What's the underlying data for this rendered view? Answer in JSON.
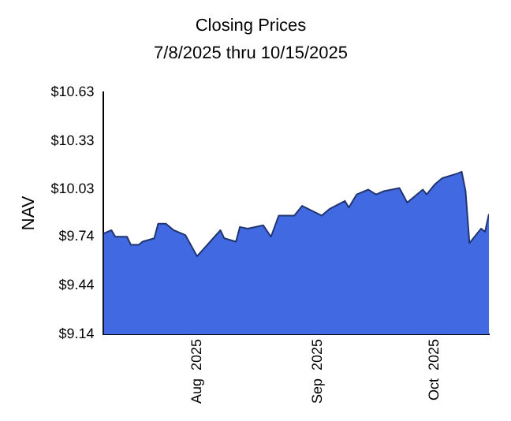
{
  "chart_data": {
    "type": "area",
    "title": "Closing Prices",
    "subtitle": "7/8/2025 thru 10/15/2025",
    "ylabel": "NAV",
    "x": [
      "2025-07-08",
      "2025-07-10",
      "2025-07-11",
      "2025-07-14",
      "2025-07-15",
      "2025-07-17",
      "2025-07-18",
      "2025-07-21",
      "2025-07-22",
      "2025-07-24",
      "2025-07-26",
      "2025-07-29",
      "2025-08-01",
      "2025-08-07",
      "2025-08-08",
      "2025-08-11",
      "2025-08-12",
      "2025-08-14",
      "2025-08-18",
      "2025-08-20",
      "2025-08-22",
      "2025-08-26",
      "2025-08-28",
      "2025-09-02",
      "2025-09-04",
      "2025-09-08",
      "2025-09-09",
      "2025-09-11",
      "2025-09-14",
      "2025-09-16",
      "2025-09-18",
      "2025-09-22",
      "2025-09-24",
      "2025-09-28",
      "2025-09-29",
      "2025-10-01",
      "2025-10-03",
      "2025-10-07",
      "2025-10-08",
      "2025-10-09",
      "2025-10-10",
      "2025-10-13",
      "2025-10-14",
      "2025-10-15"
    ],
    "series": [
      {
        "color": "#4169e1",
        "values": [
          9.76,
          9.78,
          9.74,
          9.74,
          9.69,
          9.69,
          9.71,
          9.73,
          9.82,
          9.82,
          9.78,
          9.75,
          9.62,
          9.78,
          9.73,
          9.71,
          9.8,
          9.79,
          9.81,
          9.74,
          9.87,
          9.87,
          9.93,
          9.87,
          9.91,
          9.96,
          9.92,
          10.0,
          10.03,
          10.0,
          10.02,
          10.04,
          9.95,
          10.03,
          10.0,
          10.06,
          10.1,
          10.13,
          10.14,
          10.02,
          9.7,
          9.79,
          9.77,
          9.88
        ]
      }
    ],
    "xlim": [
      "2025-07-08",
      "2025-10-15"
    ],
    "xticks": [
      {
        "value": "2025-08-01",
        "label": "Aug  2025"
      },
      {
        "value": "2025-09-01",
        "label": "Sep  2025"
      },
      {
        "value": "2025-10-01",
        "label": "Oct  2025"
      }
    ],
    "ylim": [
      9.14,
      10.63
    ],
    "yticks": [
      {
        "value": 9.14,
        "label": "$9.14"
      },
      {
        "value": 9.44,
        "label": "$9.44"
      },
      {
        "value": 9.74,
        "label": "$9.74"
      },
      {
        "value": 10.03,
        "label": "$10.03"
      },
      {
        "value": 10.33,
        "label": "$10.33"
      },
      {
        "value": 10.63,
        "label": "$10.63"
      }
    ],
    "grid": false,
    "legend": false
  }
}
